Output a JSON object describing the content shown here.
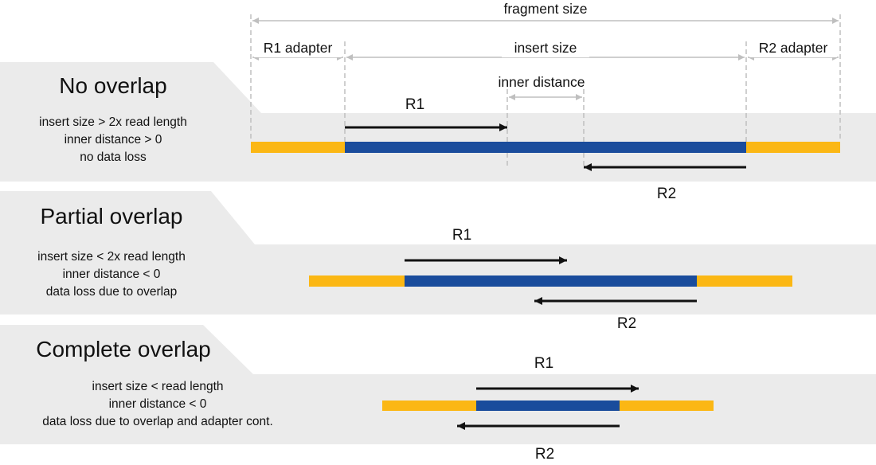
{
  "colors": {
    "adapter": "#FBB714",
    "insert": "#1A4C9C",
    "panel": "#EBEBEB",
    "dimension_line": "#BFBFBF",
    "read_arrow": "#111111",
    "text": "#111111"
  },
  "dimensions": {
    "fragment_size": "fragment size",
    "r1_adapter": "R1 adapter",
    "insert_size": "insert size",
    "r2_adapter": "R2 adapter",
    "inner_distance": "inner distance"
  },
  "panels": [
    {
      "title": "No overlap",
      "lines": [
        "insert size > 2x read length",
        "inner distance > 0",
        "no data loss"
      ],
      "r1_label": "R1",
      "r2_label": "R2"
    },
    {
      "title": "Partial overlap",
      "lines": [
        "insert size < 2x read length",
        "inner distance < 0",
        "data loss due to overlap"
      ],
      "r1_label": "R1",
      "r2_label": "R2"
    },
    {
      "title": "Complete overlap",
      "lines": [
        "insert size < read length",
        "inner distance < 0",
        "data loss due to overlap and adapter cont."
      ],
      "r1_label": "R1",
      "r2_label": "R2"
    }
  ]
}
